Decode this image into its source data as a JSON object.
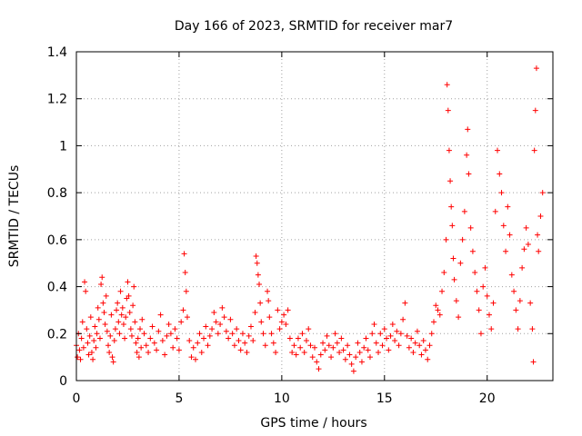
{
  "chart_data": {
    "type": "scatter",
    "title": "Day 166 of 2023, SRMTID for receiver mar7",
    "xlabel": "GPS time / hours",
    "ylabel": "SRMTID / TECUs",
    "xlim": [
      0,
      23.2
    ],
    "ylim": [
      0,
      1.4
    ],
    "xticks": [
      0,
      5,
      10,
      15,
      20
    ],
    "yticks": [
      0,
      0.2,
      0.4,
      0.6,
      0.8,
      1,
      1.2,
      1.4
    ],
    "ytick_labels": [
      "0",
      "0.2",
      "0.4",
      "0.6",
      "0.8",
      "1",
      "1.2",
      "1.4"
    ],
    "grid": true,
    "marker": "+",
    "color": "#ff0000",
    "series": [
      {
        "name": "mar7",
        "points": [
          [
            0.0,
            0.15
          ],
          [
            0.05,
            0.1
          ],
          [
            0.1,
            0.2
          ],
          [
            0.15,
            0.13
          ],
          [
            0.2,
            0.09
          ],
          [
            0.25,
            0.18
          ],
          [
            0.3,
            0.25
          ],
          [
            0.35,
            0.14
          ],
          [
            0.4,
            0.42
          ],
          [
            0.45,
            0.38
          ],
          [
            0.5,
            0.22
          ],
          [
            0.55,
            0.16
          ],
          [
            0.6,
            0.11
          ],
          [
            0.65,
            0.19
          ],
          [
            0.7,
            0.27
          ],
          [
            0.75,
            0.12
          ],
          [
            0.8,
            0.09
          ],
          [
            0.85,
            0.17
          ],
          [
            0.9,
            0.23
          ],
          [
            0.95,
            0.14
          ],
          [
            1.0,
            0.2
          ],
          [
            1.05,
            0.31
          ],
          [
            1.1,
            0.26
          ],
          [
            1.15,
            0.18
          ],
          [
            1.2,
            0.41
          ],
          [
            1.25,
            0.44
          ],
          [
            1.3,
            0.33
          ],
          [
            1.35,
            0.29
          ],
          [
            1.4,
            0.24
          ],
          [
            1.45,
            0.36
          ],
          [
            1.5,
            0.21
          ],
          [
            1.55,
            0.15
          ],
          [
            1.6,
            0.12
          ],
          [
            1.65,
            0.19
          ],
          [
            1.7,
            0.28
          ],
          [
            1.75,
            0.1
          ],
          [
            1.8,
            0.08
          ],
          [
            1.85,
            0.17
          ],
          [
            1.9,
            0.22
          ],
          [
            1.95,
            0.3
          ],
          [
            2.0,
            0.33
          ],
          [
            2.05,
            0.25
          ],
          [
            2.1,
            0.2
          ],
          [
            2.15,
            0.38
          ],
          [
            2.2,
            0.28
          ],
          [
            2.25,
            0.31
          ],
          [
            2.3,
            0.24
          ],
          [
            2.35,
            0.18
          ],
          [
            2.4,
            0.27
          ],
          [
            2.45,
            0.35
          ],
          [
            2.5,
            0.42
          ],
          [
            2.55,
            0.36
          ],
          [
            2.6,
            0.29
          ],
          [
            2.65,
            0.22
          ],
          [
            2.7,
            0.19
          ],
          [
            2.75,
            0.32
          ],
          [
            2.8,
            0.4
          ],
          [
            2.85,
            0.25
          ],
          [
            2.9,
            0.16
          ],
          [
            2.95,
            0.12
          ],
          [
            3.0,
            0.18
          ],
          [
            3.05,
            0.1
          ],
          [
            3.1,
            0.22
          ],
          [
            3.15,
            0.14
          ],
          [
            3.2,
            0.26
          ],
          [
            3.3,
            0.2
          ],
          [
            3.4,
            0.15
          ],
          [
            3.5,
            0.12
          ],
          [
            3.6,
            0.18
          ],
          [
            3.7,
            0.23
          ],
          [
            3.8,
            0.16
          ],
          [
            3.9,
            0.13
          ],
          [
            4.0,
            0.21
          ],
          [
            4.1,
            0.28
          ],
          [
            4.2,
            0.17
          ],
          [
            4.3,
            0.11
          ],
          [
            4.4,
            0.19
          ],
          [
            4.5,
            0.24
          ],
          [
            4.6,
            0.2
          ],
          [
            4.7,
            0.14
          ],
          [
            4.8,
            0.22
          ],
          [
            4.9,
            0.18
          ],
          [
            5.0,
            0.13
          ],
          [
            5.1,
            0.25
          ],
          [
            5.2,
            0.3
          ],
          [
            5.25,
            0.54
          ],
          [
            5.3,
            0.46
          ],
          [
            5.35,
            0.38
          ],
          [
            5.4,
            0.27
          ],
          [
            5.5,
            0.17
          ],
          [
            5.6,
            0.1
          ],
          [
            5.7,
            0.14
          ],
          [
            5.8,
            0.09
          ],
          [
            5.9,
            0.16
          ],
          [
            6.0,
            0.2
          ],
          [
            6.1,
            0.12
          ],
          [
            6.2,
            0.18
          ],
          [
            6.3,
            0.23
          ],
          [
            6.4,
            0.15
          ],
          [
            6.5,
            0.19
          ],
          [
            6.6,
            0.22
          ],
          [
            6.7,
            0.29
          ],
          [
            6.8,
            0.25
          ],
          [
            6.9,
            0.2
          ],
          [
            7.0,
            0.24
          ],
          [
            7.1,
            0.31
          ],
          [
            7.2,
            0.27
          ],
          [
            7.3,
            0.21
          ],
          [
            7.4,
            0.18
          ],
          [
            7.5,
            0.26
          ],
          [
            7.6,
            0.2
          ],
          [
            7.7,
            0.15
          ],
          [
            7.8,
            0.22
          ],
          [
            7.9,
            0.17
          ],
          [
            8.0,
            0.13
          ],
          [
            8.1,
            0.2
          ],
          [
            8.2,
            0.16
          ],
          [
            8.3,
            0.12
          ],
          [
            8.4,
            0.19
          ],
          [
            8.5,
            0.23
          ],
          [
            8.6,
            0.17
          ],
          [
            8.7,
            0.29
          ],
          [
            8.75,
            0.53
          ],
          [
            8.8,
            0.5
          ],
          [
            8.85,
            0.45
          ],
          [
            8.9,
            0.41
          ],
          [
            8.95,
            0.33
          ],
          [
            9.0,
            0.25
          ],
          [
            9.1,
            0.2
          ],
          [
            9.2,
            0.15
          ],
          [
            9.3,
            0.38
          ],
          [
            9.35,
            0.34
          ],
          [
            9.4,
            0.27
          ],
          [
            9.5,
            0.2
          ],
          [
            9.6,
            0.16
          ],
          [
            9.7,
            0.12
          ],
          [
            9.8,
            0.3
          ],
          [
            9.9,
            0.22
          ],
          [
            10.0,
            0.25
          ],
          [
            10.1,
            0.28
          ],
          [
            10.2,
            0.24
          ],
          [
            10.3,
            0.3
          ],
          [
            10.4,
            0.18
          ],
          [
            10.5,
            0.12
          ],
          [
            10.6,
            0.15
          ],
          [
            10.7,
            0.11
          ],
          [
            10.8,
            0.18
          ],
          [
            10.9,
            0.14
          ],
          [
            11.0,
            0.2
          ],
          [
            11.1,
            0.12
          ],
          [
            11.2,
            0.17
          ],
          [
            11.3,
            0.22
          ],
          [
            11.4,
            0.15
          ],
          [
            11.5,
            0.1
          ],
          [
            11.6,
            0.14
          ],
          [
            11.7,
            0.08
          ],
          [
            11.8,
            0.05
          ],
          [
            11.9,
            0.11
          ],
          [
            12.0,
            0.16
          ],
          [
            12.1,
            0.13
          ],
          [
            12.2,
            0.19
          ],
          [
            12.3,
            0.15
          ],
          [
            12.4,
            0.1
          ],
          [
            12.5,
            0.14
          ],
          [
            12.6,
            0.2
          ],
          [
            12.7,
            0.16
          ],
          [
            12.8,
            0.12
          ],
          [
            12.9,
            0.18
          ],
          [
            13.0,
            0.13
          ],
          [
            13.1,
            0.09
          ],
          [
            13.2,
            0.15
          ],
          [
            13.3,
            0.11
          ],
          [
            13.4,
            0.07
          ],
          [
            13.5,
            0.04
          ],
          [
            13.6,
            0.1
          ],
          [
            13.7,
            0.16
          ],
          [
            13.8,
            0.12
          ],
          [
            13.9,
            0.08
          ],
          [
            14.0,
            0.14
          ],
          [
            14.1,
            0.18
          ],
          [
            14.2,
            0.13
          ],
          [
            14.3,
            0.1
          ],
          [
            14.4,
            0.2
          ],
          [
            14.5,
            0.24
          ],
          [
            14.6,
            0.16
          ],
          [
            14.7,
            0.12
          ],
          [
            14.8,
            0.2
          ],
          [
            14.9,
            0.15
          ],
          [
            15.0,
            0.22
          ],
          [
            15.1,
            0.18
          ],
          [
            15.2,
            0.13
          ],
          [
            15.3,
            0.19
          ],
          [
            15.4,
            0.24
          ],
          [
            15.5,
            0.17
          ],
          [
            15.6,
            0.21
          ],
          [
            15.7,
            0.15
          ],
          [
            15.8,
            0.2
          ],
          [
            15.9,
            0.26
          ],
          [
            16.0,
            0.33
          ],
          [
            16.1,
            0.19
          ],
          [
            16.2,
            0.14
          ],
          [
            16.3,
            0.18
          ],
          [
            16.4,
            0.12
          ],
          [
            16.5,
            0.16
          ],
          [
            16.6,
            0.21
          ],
          [
            16.7,
            0.15
          ],
          [
            16.8,
            0.11
          ],
          [
            16.9,
            0.17
          ],
          [
            17.0,
            0.13
          ],
          [
            17.1,
            0.09
          ],
          [
            17.2,
            0.15
          ],
          [
            17.3,
            0.2
          ],
          [
            17.4,
            0.25
          ],
          [
            17.5,
            0.32
          ],
          [
            17.6,
            0.3
          ],
          [
            17.7,
            0.28
          ],
          [
            17.8,
            0.38
          ],
          [
            17.9,
            0.46
          ],
          [
            18.0,
            0.6
          ],
          [
            18.05,
            1.26
          ],
          [
            18.1,
            1.15
          ],
          [
            18.15,
            0.98
          ],
          [
            18.2,
            0.85
          ],
          [
            18.25,
            0.74
          ],
          [
            18.3,
            0.66
          ],
          [
            18.35,
            0.52
          ],
          [
            18.4,
            0.43
          ],
          [
            18.5,
            0.34
          ],
          [
            18.6,
            0.27
          ],
          [
            18.7,
            0.5
          ],
          [
            18.8,
            0.6
          ],
          [
            18.9,
            0.72
          ],
          [
            19.0,
            0.96
          ],
          [
            19.05,
            1.07
          ],
          [
            19.1,
            0.88
          ],
          [
            19.2,
            0.65
          ],
          [
            19.3,
            0.55
          ],
          [
            19.4,
            0.46
          ],
          [
            19.5,
            0.38
          ],
          [
            19.6,
            0.3
          ],
          [
            19.7,
            0.2
          ],
          [
            19.8,
            0.4
          ],
          [
            19.9,
            0.48
          ],
          [
            20.0,
            0.36
          ],
          [
            20.1,
            0.28
          ],
          [
            20.2,
            0.22
          ],
          [
            20.3,
            0.33
          ],
          [
            20.4,
            0.72
          ],
          [
            20.5,
            0.98
          ],
          [
            20.6,
            0.88
          ],
          [
            20.7,
            0.8
          ],
          [
            20.8,
            0.66
          ],
          [
            20.9,
            0.55
          ],
          [
            21.0,
            0.74
          ],
          [
            21.1,
            0.62
          ],
          [
            21.2,
            0.45
          ],
          [
            21.3,
            0.38
          ],
          [
            21.4,
            0.3
          ],
          [
            21.5,
            0.22
          ],
          [
            21.6,
            0.34
          ],
          [
            21.7,
            0.48
          ],
          [
            21.8,
            0.56
          ],
          [
            21.9,
            0.65
          ],
          [
            22.0,
            0.58
          ],
          [
            22.1,
            0.33
          ],
          [
            22.2,
            0.22
          ],
          [
            22.25,
            0.08
          ],
          [
            22.3,
            0.98
          ],
          [
            22.35,
            1.15
          ],
          [
            22.4,
            1.33
          ],
          [
            22.45,
            0.62
          ],
          [
            22.5,
            0.55
          ],
          [
            22.6,
            0.7
          ],
          [
            22.7,
            0.8
          ]
        ]
      }
    ]
  }
}
